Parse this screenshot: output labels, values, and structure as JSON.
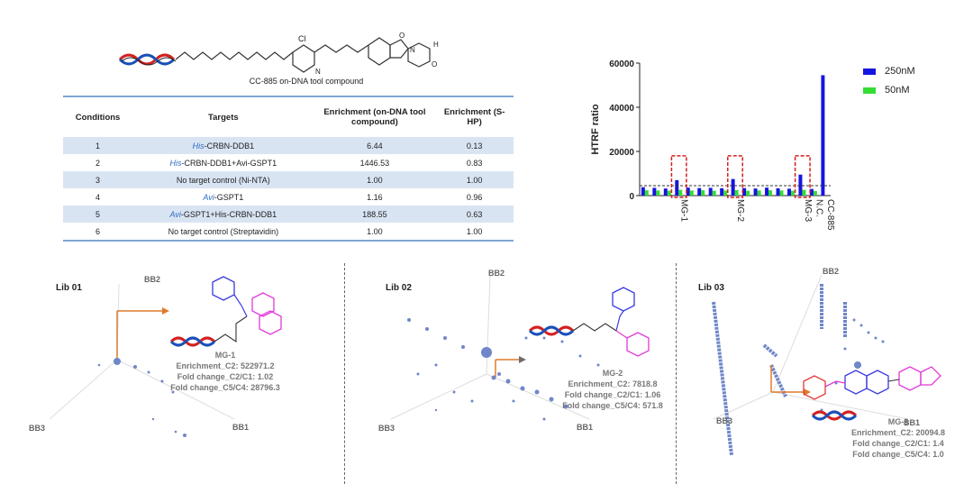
{
  "compound_caption": "CC-885 on-DNA tool compound",
  "structure_labels": {
    "cl": "Cl",
    "n": "N",
    "h": "H",
    "o": "O"
  },
  "table": {
    "headers": [
      "Conditions",
      "Targets",
      "Enrichment (on-DNA tool compound)",
      "Enrichment (S-HP)"
    ],
    "rows": [
      {
        "cond": "1",
        "tag": "His",
        "target": "-CRBN-DDB1",
        "e1": "6.44",
        "e2": "0.13"
      },
      {
        "cond": "2",
        "tag": "His",
        "target": "-CRBN-DDB1+Avi-GSPT1",
        "e1": "1446.53",
        "e2": "0.83"
      },
      {
        "cond": "3",
        "tag": "",
        "target": "No target control (Ni-NTA)",
        "e1": "1.00",
        "e2": "1.00"
      },
      {
        "cond": "4",
        "tag": "Avi",
        "target": "-GSPT1",
        "e1": "1.16",
        "e2": "0.96"
      },
      {
        "cond": "5",
        "tag": "Avi",
        "target": "-GSPT1+His-CRBN-DDB1",
        "e1": "188.55",
        "e2": "0.63"
      },
      {
        "cond": "6",
        "tag": "",
        "target": "No target control (Streptavidin)",
        "e1": "1.00",
        "e2": "1.00"
      }
    ]
  },
  "chart_data": {
    "type": "bar",
    "ylabel": "HTRF ratio",
    "ylim": [
      0,
      60000
    ],
    "yticks": [
      "0",
      "20000",
      "40000",
      "60000"
    ],
    "ytick_values": [
      0,
      20000,
      40000,
      60000
    ],
    "threshold": 4500,
    "xlabels": [
      {
        "text": "MG-1",
        "index": 3
      },
      {
        "text": "MG-2",
        "index": 8
      },
      {
        "text": "MG-3",
        "index": 14
      },
      {
        "text": "N.C.",
        "index": 15
      },
      {
        "text": "CC-885",
        "index": 16
      }
    ],
    "highlight_indices": [
      3,
      8,
      14
    ],
    "series": [
      {
        "name": "250nM",
        "color": "#1515e0",
        "values": [
          3800,
          3500,
          3200,
          7000,
          3600,
          3400,
          3500,
          3300,
          7500,
          3400,
          3200,
          3600,
          3300,
          3100,
          9500,
          3000,
          54500
        ]
      },
      {
        "name": "50nM",
        "color": "#33dd33",
        "values": [
          2400,
          2300,
          2200,
          2600,
          2300,
          2400,
          2200,
          2300,
          2500,
          2200,
          2300,
          2400,
          2300,
          2200,
          2600,
          2100,
          0
        ]
      }
    ]
  },
  "libraries": [
    {
      "title": "Lib 01",
      "bb2": "BB2",
      "bb3": "BB3",
      "bb1": "BB1",
      "compound": "MG-1",
      "stats": [
        "Enrichment_C2: 522971.2",
        "Fold change_C2/C1: 1.02",
        "Fold change_C5/C4: 28796.3"
      ]
    },
    {
      "title": "Lib 02",
      "bb2": "BB2",
      "bb3": "BB3",
      "bb1": "BB1",
      "compound": "MG-2",
      "stats": [
        "Enrichment_C2: 7818.8",
        "Fold change_C2/C1: 1.06",
        "Fold change_C5/C4: 571.8"
      ]
    },
    {
      "title": "Lib 03",
      "bb2": "BB2",
      "bb3": "BB3",
      "bb1": "BB1",
      "compound": "MG-3",
      "stats": [
        "Enrichment_C2: 20094.8",
        "Fold change_C2/C1: 1.4",
        "Fold change_C5/C4: 1.0"
      ]
    }
  ],
  "colors": {
    "dna_red": "#d42020",
    "dna_blue": "#1a4fb8",
    "arrow": "#e07a2a",
    "bb1_blue": "#3a3ae0",
    "bb3_magenta": "#e23ad8",
    "dot": "#6f86c8"
  }
}
